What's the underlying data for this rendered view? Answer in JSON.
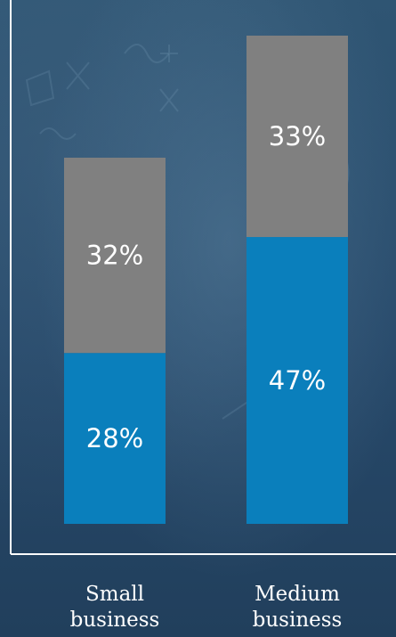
{
  "chart_data": {
    "type": "bar",
    "stacked": true,
    "categories": [
      "Small business",
      "Medium business"
    ],
    "category_lines": [
      [
        "Small",
        "business"
      ],
      [
        "Medium",
        "business"
      ]
    ],
    "series": [
      {
        "values": [
          28,
          47
        ],
        "color": "#0a7fbc"
      },
      {
        "values": [
          32,
          33
        ],
        "color": "#808080"
      }
    ],
    "data_labels": [
      [
        "28%",
        "47%"
      ],
      [
        "32%",
        "33%"
      ]
    ],
    "ylim": [
      0,
      85
    ],
    "grid": false,
    "legend": "none"
  }
}
